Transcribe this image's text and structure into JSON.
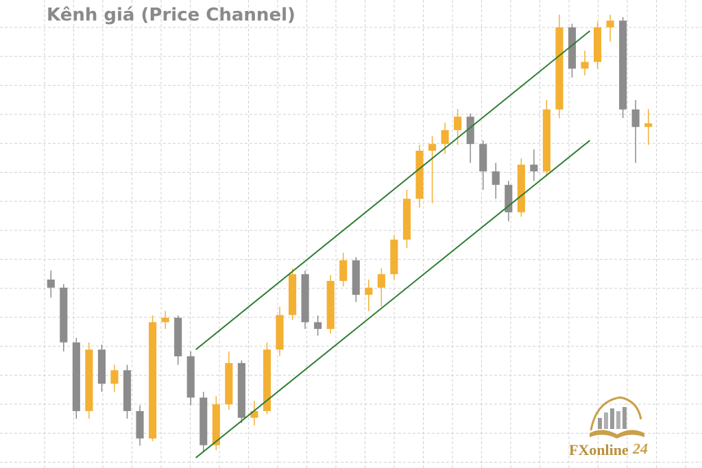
{
  "chart_data": {
    "type": "candlestick",
    "title": "Kênh giá (Price Channel)",
    "categories": [
      null,
      null,
      null,
      null,
      null,
      null,
      null,
      null,
      null,
      null,
      null,
      null,
      null,
      null,
      null,
      null,
      null,
      null,
      null,
      null,
      null,
      null,
      null,
      null,
      null,
      null,
      null,
      null,
      null,
      null,
      null,
      null,
      null,
      null,
      null,
      null,
      null,
      null,
      null,
      null,
      null,
      null,
      null,
      null,
      null,
      null,
      null,
      null
    ],
    "open": [
      40,
      38.2,
      26,
      10.7,
      24.4,
      16.8,
      19.8,
      10.7,
      4.6,
      30.5,
      31.5,
      22.9,
      13.7,
      3.1,
      12.2,
      21.4,
      9.2,
      10.7,
      24.4,
      32.1,
      41.2,
      30.5,
      29,
      39.7,
      44.3,
      36.6,
      38.2,
      41.2,
      48.9,
      58,
      68.7,
      70.2,
      73.3,
      76.3,
      70.2,
      64.1,
      61.1,
      55,
      65.6,
      64.1,
      77.9,
      96.2,
      87,
      88.5,
      96.2,
      97.7,
      77.9,
      74
    ],
    "high": [
      42,
      39,
      27,
      26,
      25.5,
      21,
      21,
      12,
      32,
      33,
      32,
      24,
      15,
      14,
      24,
      22,
      13,
      26,
      34,
      42.5,
      42,
      32,
      41,
      46,
      45,
      40,
      42.5,
      50,
      60,
      70,
      72,
      75,
      78,
      77,
      71,
      66,
      62,
      67,
      69,
      80,
      99,
      97,
      91,
      97.5,
      99,
      98.5,
      80,
      78
    ],
    "low": [
      36,
      24,
      9,
      9,
      15,
      15,
      9,
      3,
      4,
      29,
      21,
      12,
      1.5,
      2,
      11,
      8,
      7.5,
      10,
      23,
      31,
      29,
      27.5,
      28,
      38.5,
      35,
      33,
      34,
      40,
      47,
      56,
      57,
      68,
      70,
      66,
      60,
      58,
      53,
      54,
      62,
      63,
      76,
      85,
      85.5,
      87,
      93,
      76,
      66,
      70
    ],
    "close": [
      38.2,
      26,
      10.7,
      24.4,
      16.8,
      19.8,
      10.7,
      4.6,
      30.5,
      31.5,
      22.9,
      13.7,
      3.1,
      12.2,
      21.4,
      9.2,
      10.7,
      24.4,
      32.1,
      41.2,
      30.5,
      29,
      39.7,
      44.3,
      36.6,
      38.2,
      41.2,
      48.9,
      58,
      68.7,
      70.2,
      73.3,
      76.3,
      70.2,
      64.1,
      61.1,
      55,
      65.6,
      64.1,
      77.9,
      96.2,
      87,
      88.5,
      96.2,
      97.7,
      77.9,
      74,
      74.8
    ],
    "up_color": "#f3b033",
    "down_color": "#8c8c8c",
    "xlim": [
      -0.5,
      47.5
    ],
    "ylim": [
      0,
      100
    ],
    "grid": true,
    "channel_lines": [
      {
        "x": [
          11.4,
          42.4
        ],
        "values": [
          24.4,
          95.4
        ],
        "color": "#2e7d32"
      },
      {
        "x": [
          11.4,
          42.4
        ],
        "values": [
          0.3,
          71.0
        ],
        "color": "#2e7d32"
      }
    ]
  },
  "logo": {
    "text": "FXonline",
    "number": "24"
  }
}
